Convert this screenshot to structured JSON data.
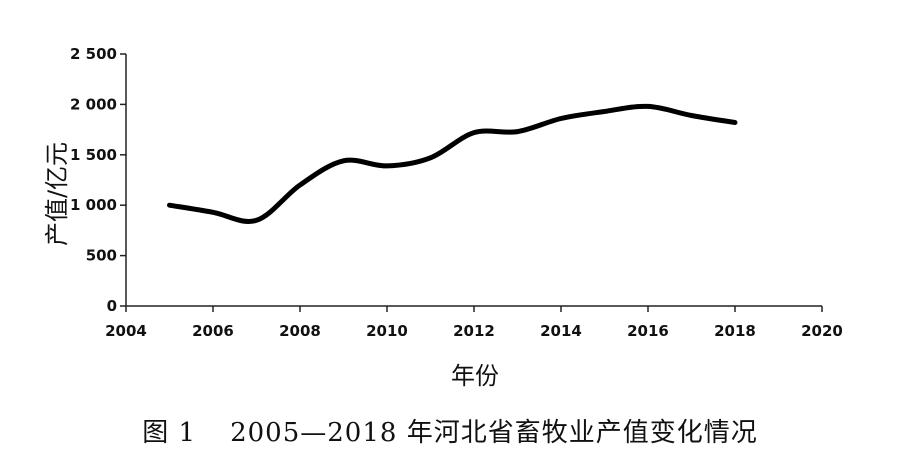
{
  "caption": {
    "figure_number": "图 1",
    "text": "2005—2018 年河北省畜牧业产值变化情况"
  },
  "chart_data": {
    "type": "line",
    "xlabel": "年份",
    "ylabel": "产值/亿元",
    "xlim": [
      2004,
      2020
    ],
    "ylim": [
      0,
      2500
    ],
    "x_ticks": [
      2004,
      2006,
      2008,
      2010,
      2012,
      2014,
      2016,
      2018,
      2020
    ],
    "x_tick_labels": [
      "2004",
      "2006",
      "2008",
      "2010",
      "2012",
      "2014",
      "2016",
      "2018",
      "2020"
    ],
    "y_ticks": [
      0,
      500,
      1000,
      1500,
      2000,
      2500
    ],
    "y_tick_labels": [
      "0",
      "500",
      "1 000",
      "1 500",
      "2 000",
      "2 500"
    ],
    "grid": false,
    "series": [
      {
        "x": [
          2005,
          2006,
          2007,
          2008,
          2009,
          2010,
          2011,
          2012,
          2013,
          2014,
          2015,
          2016,
          2017,
          2018
        ],
        "y": [
          1000,
          930,
          850,
          1200,
          1440,
          1390,
          1470,
          1720,
          1730,
          1860,
          1930,
          1980,
          1890,
          1820
        ],
        "color": "#000000"
      }
    ]
  }
}
